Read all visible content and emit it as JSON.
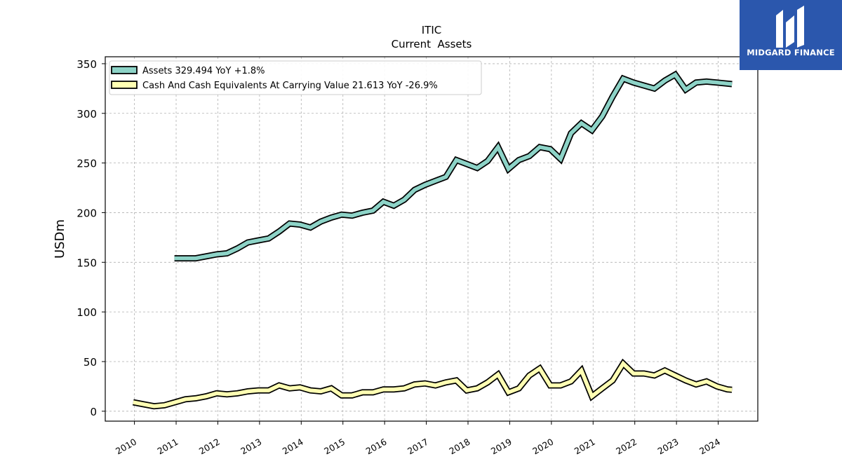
{
  "brand": {
    "name": "MIDGARD FINANCE",
    "logo_icon": "midgard-logo-icon",
    "bg_color": "#2b57ad"
  },
  "chart_data": {
    "type": "line",
    "title": "ITIC",
    "subtitle": "Current  Assets",
    "ylabel": "USDm",
    "xlabel": "",
    "ylim": [
      -10,
      357
    ],
    "xlim": [
      2009.3,
      2024.95
    ],
    "yticks": [
      0,
      50,
      100,
      150,
      200,
      250,
      300,
      350
    ],
    "xticks": [
      "2010",
      "2011",
      "2012",
      "2013",
      "2014",
      "2015",
      "2016",
      "2017",
      "2018",
      "2019",
      "2020",
      "2021",
      "2022",
      "2023",
      "2024"
    ],
    "grid": true,
    "legend_position": "top-left",
    "series": [
      {
        "name": "Assets",
        "legend_label": "Assets  329.494 YoY +1.8%",
        "color": "#8dd3c7",
        "points": [
          [
            2010.96,
            154
          ],
          [
            2011.21,
            154
          ],
          [
            2011.47,
            154
          ],
          [
            2011.72,
            156
          ],
          [
            2011.97,
            158
          ],
          [
            2012.22,
            159
          ],
          [
            2012.47,
            164
          ],
          [
            2012.72,
            170
          ],
          [
            2012.97,
            172
          ],
          [
            2013.22,
            174
          ],
          [
            2013.47,
            181
          ],
          [
            2013.72,
            189
          ],
          [
            2013.97,
            188
          ],
          [
            2014.22,
            185
          ],
          [
            2014.47,
            191
          ],
          [
            2014.72,
            195
          ],
          [
            2014.97,
            198
          ],
          [
            2015.22,
            197
          ],
          [
            2015.47,
            200
          ],
          [
            2015.72,
            202
          ],
          [
            2015.97,
            211
          ],
          [
            2016.22,
            207
          ],
          [
            2016.47,
            213
          ],
          [
            2016.72,
            223
          ],
          [
            2016.97,
            228
          ],
          [
            2017.22,
            232
          ],
          [
            2017.47,
            236
          ],
          [
            2017.72,
            253
          ],
          [
            2017.97,
            249
          ],
          [
            2018.22,
            245
          ],
          [
            2018.47,
            252
          ],
          [
            2018.72,
            266
          ],
          [
            2018.97,
            244
          ],
          [
            2019.22,
            253
          ],
          [
            2019.47,
            257
          ],
          [
            2019.72,
            266
          ],
          [
            2019.97,
            264
          ],
          [
            2020.22,
            254
          ],
          [
            2020.47,
            280
          ],
          [
            2020.72,
            290
          ],
          [
            2020.97,
            283
          ],
          [
            2021.22,
            297
          ],
          [
            2021.47,
            317
          ],
          [
            2021.72,
            335
          ],
          [
            2021.97,
            331
          ],
          [
            2022.22,
            328
          ],
          [
            2022.47,
            325
          ],
          [
            2022.72,
            333
          ],
          [
            2022.97,
            339
          ],
          [
            2023.22,
            324
          ],
          [
            2023.47,
            331
          ],
          [
            2023.72,
            332
          ],
          [
            2023.97,
            331
          ],
          [
            2024.22,
            330
          ],
          [
            2024.33,
            329.494
          ]
        ]
      },
      {
        "name": "Cash And Cash Equivalents At Carrying Value",
        "legend_label": "Cash And Cash Equivalents At Carrying Value  21.613 YoY -26.9%",
        "color": "#ffffb3",
        "points": [
          [
            2009.97,
            9
          ],
          [
            2010.22,
            7
          ],
          [
            2010.47,
            5
          ],
          [
            2010.72,
            6
          ],
          [
            2010.97,
            9
          ],
          [
            2011.22,
            12
          ],
          [
            2011.47,
            13
          ],
          [
            2011.72,
            15
          ],
          [
            2011.97,
            18
          ],
          [
            2012.22,
            17
          ],
          [
            2012.47,
            18
          ],
          [
            2012.72,
            20
          ],
          [
            2012.97,
            21
          ],
          [
            2013.22,
            21
          ],
          [
            2013.47,
            26
          ],
          [
            2013.72,
            23
          ],
          [
            2013.97,
            24
          ],
          [
            2014.22,
            21
          ],
          [
            2014.47,
            20
          ],
          [
            2014.72,
            23
          ],
          [
            2014.97,
            16
          ],
          [
            2015.22,
            16
          ],
          [
            2015.47,
            19
          ],
          [
            2015.72,
            19
          ],
          [
            2015.97,
            22
          ],
          [
            2016.22,
            22
          ],
          [
            2016.47,
            23
          ],
          [
            2016.72,
            27
          ],
          [
            2016.97,
            28
          ],
          [
            2017.22,
            26
          ],
          [
            2017.47,
            29
          ],
          [
            2017.72,
            31
          ],
          [
            2017.97,
            21
          ],
          [
            2018.22,
            23
          ],
          [
            2018.47,
            29
          ],
          [
            2018.72,
            37
          ],
          [
            2018.97,
            19
          ],
          [
            2019.22,
            23
          ],
          [
            2019.47,
            36
          ],
          [
            2019.72,
            43
          ],
          [
            2019.97,
            26
          ],
          [
            2020.22,
            26
          ],
          [
            2020.47,
            30
          ],
          [
            2020.72,
            41
          ],
          [
            2020.97,
            15
          ],
          [
            2021.22,
            23
          ],
          [
            2021.47,
            31
          ],
          [
            2021.72,
            48
          ],
          [
            2021.97,
            38
          ],
          [
            2022.22,
            38
          ],
          [
            2022.47,
            36
          ],
          [
            2022.72,
            41
          ],
          [
            2022.97,
            36
          ],
          [
            2023.22,
            31
          ],
          [
            2023.47,
            27
          ],
          [
            2023.72,
            30
          ],
          [
            2023.97,
            25
          ],
          [
            2024.22,
            22
          ],
          [
            2024.33,
            21.613
          ]
        ]
      }
    ]
  }
}
